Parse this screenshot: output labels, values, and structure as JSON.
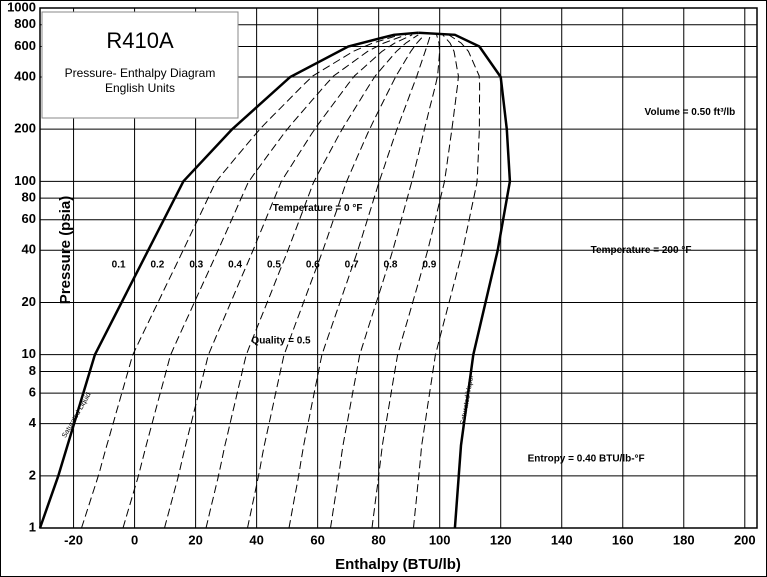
{
  "chart_data": {
    "type": "line",
    "title": "R410A",
    "subtitle": [
      "Pressure- Enthalpy Diagram",
      "English Units"
    ],
    "x_label": "Enthalpy  (BTU/lb)",
    "y_label": "Pressure (psia)",
    "xlim": [
      -31,
      204
    ],
    "ylim": [
      1,
      1000
    ],
    "log_y": true,
    "grid": true,
    "xticks": [
      -20,
      0,
      20,
      40,
      60,
      80,
      100,
      120,
      140,
      160,
      180,
      200
    ],
    "yticks": [
      1,
      2,
      4,
      6,
      8,
      10,
      20,
      40,
      60,
      80,
      100,
      200,
      400,
      600,
      800,
      1000
    ],
    "series": [
      {
        "name": "Saturated Liquid",
        "color": "#000000",
        "x": [
          -31,
          -25,
          -13,
          16,
          32,
          51,
          70,
          85,
          93
        ],
        "values": [
          1,
          2,
          10,
          100,
          200,
          400,
          600,
          700,
          720
        ]
      },
      {
        "name": "Saturated Vapor",
        "color": "#000000",
        "x": [
          93,
          105,
          113,
          120,
          122,
          123,
          119,
          111,
          107,
          105
        ],
        "values": [
          720,
          700,
          600,
          400,
          200,
          100,
          40,
          10,
          3,
          1
        ]
      }
    ],
    "quality_lines": [
      0.1,
      0.2,
      0.3,
      0.4,
      0.5,
      0.6,
      0.7,
      0.8,
      0.9
    ],
    "annotations": [
      {
        "text": "Temperature = 0 °F",
        "x": 60,
        "y": 70
      },
      {
        "text": "Quality = 0.5",
        "x": 48,
        "y": 12
      },
      {
        "text": "Volume = 0.50 ft³/lb",
        "x": 182,
        "y": 250
      },
      {
        "text": "Entropy = 0.40 BTU/lb-°F",
        "x": 148,
        "y": 2.5
      },
      {
        "text": "Temperature = 200 °F",
        "x": 166,
        "y": 40
      }
    ]
  }
}
